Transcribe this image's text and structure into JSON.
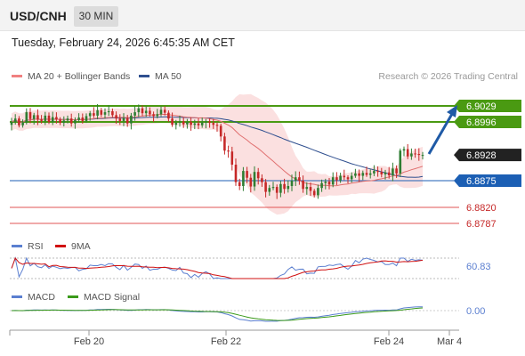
{
  "header": {
    "symbol": "USD/CNH",
    "timeframe": "30 MIN"
  },
  "timestamp": "Tuesday, February 24, 2026 6:45:35 AM CET",
  "main_legend": {
    "bb_label": "MA 20 + Bollinger Bands",
    "ma50_label": "MA 50"
  },
  "credit": "Research © 2026 Trading Central",
  "rsi_legend": {
    "rsi_label": "RSI",
    "ma_label": "9MA"
  },
  "macd_legend": {
    "macd_label": "MACD",
    "signal_label": "MACD Signal"
  },
  "colors": {
    "up": "#2e7d32",
    "down": "#c62828",
    "green_level": "#4a9a12",
    "blue_level": "#1c5fb4",
    "red_level": "#e05555",
    "ma20": "#e07070",
    "ma50": "#2f4f8f",
    "band": "#fadadb",
    "rsi": "#5b7fd0",
    "rsi_ma": "#d01010",
    "macd": "#5b7fd0",
    "macd_signal": "#3a9a1a",
    "arrow": "#1f5aa6",
    "price_tag": "#222222"
  },
  "chart_data": [
    {
      "type": "candlestick",
      "title": "USD/CNH",
      "timeframe": "30 MIN",
      "x_ticks": [
        "Feb 20",
        "Feb 22",
        "Feb 24",
        "Mar 4"
      ],
      "ylim": [
        6.8765,
        6.908
      ],
      "last_price": "6.8928",
      "levels": [
        {
          "label": "6.9029",
          "value": 6.9029,
          "kind": "resistance"
        },
        {
          "label": "6.8996",
          "value": 6.8996,
          "kind": "resistance"
        },
        {
          "label": "6.8875",
          "value": 6.8875,
          "kind": "pivot"
        },
        {
          "label": "6.8820",
          "value": 6.882,
          "kind": "support"
        },
        {
          "label": "6.8787",
          "value": 6.8787,
          "kind": "support"
        }
      ],
      "indicators": [
        "MA 20 + Bollinger Bands",
        "MA 50"
      ],
      "closes": [
        6.8996,
        6.9003,
        6.8989,
        6.8995,
        6.9016,
        6.9002,
        6.901,
        6.9001,
        6.8998,
        6.9009,
        6.8996,
        6.9006,
        6.9001,
        6.8994,
        6.8999,
        6.9003,
        6.8993,
        6.9,
        6.9005,
        6.8998,
        6.9008,
        6.9014,
        6.9009,
        6.902,
        6.9011,
        6.9016,
        6.9018,
        6.901,
        6.9003,
        6.8998,
        6.9004,
        6.8993,
        6.9009,
        6.9016,
        6.9024,
        6.9014,
        6.9019,
        6.9012,
        6.9008,
        6.9012,
        6.9021,
        6.9015,
        6.9003,
        6.899,
        6.8994,
        6.8997,
        6.8991,
        6.8996,
        6.899,
        6.8993,
        6.8989,
        6.8995,
        6.8997,
        6.8994,
        6.899,
        6.8988,
        6.8966,
        6.8937,
        6.8935,
        6.8908,
        6.8872,
        6.8864,
        6.8895,
        6.8881,
        6.8863,
        6.8893,
        6.888,
        6.8872,
        6.8852,
        6.886,
        6.8862,
        6.885,
        6.8868,
        6.8858,
        6.8864,
        6.8875,
        6.8882,
        6.8875,
        6.8858,
        6.8862,
        6.8854,
        6.8845,
        6.886,
        6.887,
        6.8873,
        6.8867,
        6.8882,
        6.8876,
        6.8885,
        6.8882,
        6.8878,
        6.8885,
        6.889,
        6.8885,
        6.8891,
        6.8887,
        6.889,
        6.8895,
        6.8893,
        6.8888,
        6.8892,
        6.8886,
        6.89,
        6.889,
        6.8937,
        6.894,
        6.8925,
        6.8931,
        6.893,
        6.8928,
        6.8928
      ]
    },
    {
      "type": "line",
      "title": "RSI",
      "series": [
        {
          "name": "RSI"
        },
        {
          "name": "9MA"
        }
      ],
      "ylim": [
        30,
        70
      ],
      "reference_lines": [
        70,
        30
      ],
      "last_value": "60.83"
    },
    {
      "type": "line",
      "title": "MACD",
      "series": [
        {
          "name": "MACD"
        },
        {
          "name": "MACD Signal"
        }
      ],
      "zero_label": "0.00"
    }
  ]
}
